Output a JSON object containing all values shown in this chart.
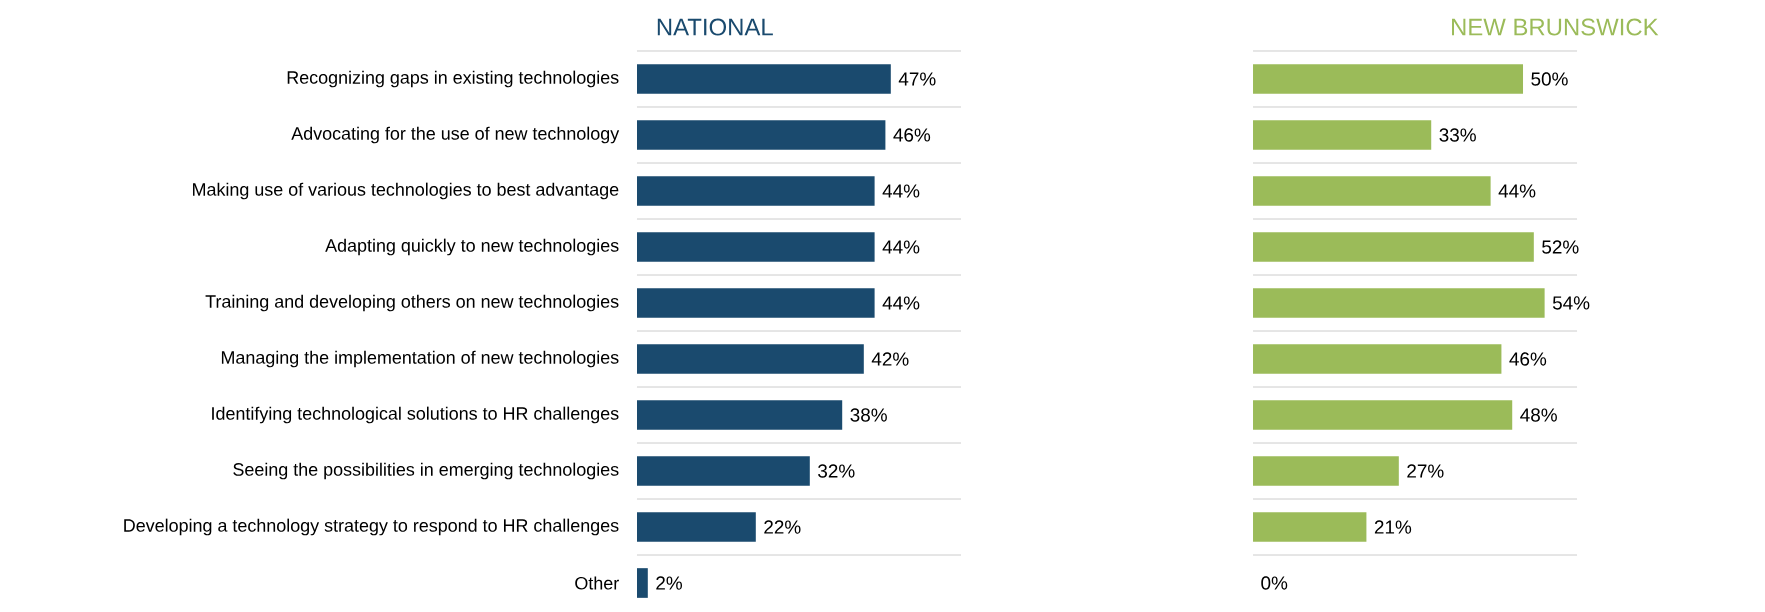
{
  "chart_data": [
    {
      "type": "bar",
      "orientation": "horizontal",
      "title": "NATIONAL",
      "categories": [
        "Recognizing gaps in existing technologies",
        "Advocating for the use of new technology",
        "Making use of various technologies to best advantage",
        "Adapting quickly to new technologies",
        "Training and developing others on new technologies",
        "Managing the implementation of new technologies",
        "Identifying technological solutions to HR challenges",
        "Seeing the possibilities in emerging technologies",
        "Developing a technology strategy to respond to HR challenges",
        "Other"
      ],
      "values": [
        47,
        46,
        44,
        44,
        44,
        42,
        38,
        32,
        22,
        2
      ],
      "value_labels": [
        "47%",
        "46%",
        "44%",
        "44%",
        "44%",
        "42%",
        "38%",
        "32%",
        "22%",
        "2%"
      ],
      "color": "#1a4a6e",
      "xlim": [
        0,
        60
      ],
      "grid": "y",
      "tick_labels": "y"
    },
    {
      "type": "bar",
      "orientation": "horizontal",
      "title": "NEW BRUNSWICK",
      "categories": [
        null,
        null,
        null,
        null,
        null,
        null,
        null,
        null,
        null,
        null
      ],
      "values": [
        50,
        33,
        44,
        52,
        54,
        46,
        48,
        27,
        21,
        0
      ],
      "value_labels": [
        "50%",
        "33%",
        "44%",
        "52%",
        "54%",
        "46%",
        "48%",
        "27%",
        "21%",
        "0%"
      ],
      "color": "#9bbb59",
      "xlim": [
        0,
        60
      ],
      "grid": "y",
      "tick_labels": false
    }
  ]
}
